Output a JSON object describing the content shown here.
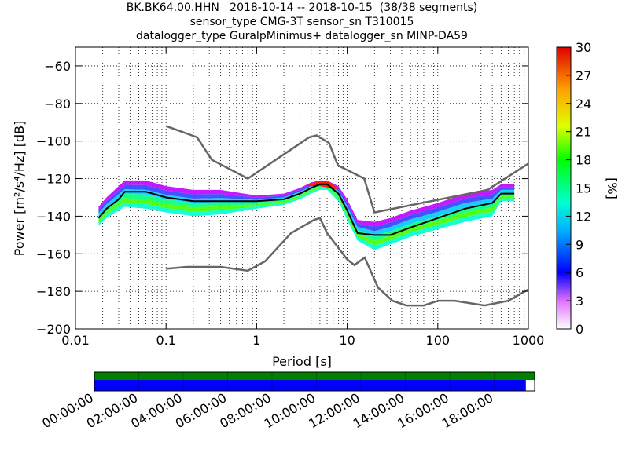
{
  "title_lines": [
    "BK.BK64.00.HHN   2018-10-14 -- 2018-10-15  (38/38 segments)",
    "sensor_type CMG-3T sensor_sn T310015",
    "datalogger_type GuralpMinimus+ datalogger_sn MINP-DA59"
  ],
  "chart_data": {
    "type": "heatmap",
    "xlabel": "Period [s]",
    "ylabel": "Power [m²/s⁴/Hz] [dB]",
    "xscale": "log",
    "xlim": [
      0.01,
      1000
    ],
    "ylim": [
      -200,
      -50
    ],
    "xticks": [
      {
        "value": 0.01,
        "label": "0.01"
      },
      {
        "value": 0.1,
        "label": "0.1"
      },
      {
        "value": 1,
        "label": "1"
      },
      {
        "value": 10,
        "label": "10"
      },
      {
        "value": 100,
        "label": "100"
      },
      {
        "value": 1000,
        "label": "1000"
      }
    ],
    "yticks": [
      {
        "value": -60,
        "label": "−60"
      },
      {
        "value": -80,
        "label": "−80"
      },
      {
        "value": -100,
        "label": "−100"
      },
      {
        "value": -120,
        "label": "−120"
      },
      {
        "value": -140,
        "label": "−140"
      },
      {
        "value": -160,
        "label": "−160"
      },
      {
        "value": -180,
        "label": "−180"
      },
      {
        "value": -200,
        "label": "−200"
      }
    ],
    "grid": true,
    "colorbar": {
      "label": "[%]",
      "range": [
        0,
        30
      ],
      "ticks": [
        "0",
        "3",
        "6",
        "9",
        "12",
        "15",
        "18",
        "21",
        "24",
        "27",
        "30"
      ]
    },
    "noise_models": {
      "high": [
        [
          0.1,
          -92
        ],
        [
          0.22,
          -98
        ],
        [
          0.32,
          -110
        ],
        [
          0.8,
          -120
        ],
        [
          3.8,
          -98
        ],
        [
          4.6,
          -97
        ],
        [
          6.3,
          -101
        ],
        [
          7.9,
          -113
        ],
        [
          15.4,
          -120
        ],
        [
          20,
          -138
        ],
        [
          354.8,
          -126
        ],
        [
          1000,
          -112
        ]
      ],
      "low": [
        [
          0.1,
          -168
        ],
        [
          0.17,
          -167
        ],
        [
          0.4,
          -167
        ],
        [
          0.8,
          -169
        ],
        [
          1.24,
          -164
        ],
        [
          2.4,
          -149
        ],
        [
          4.3,
          -142
        ],
        [
          5,
          -141
        ],
        [
          6,
          -149
        ],
        [
          10,
          -163
        ],
        [
          12,
          -166
        ],
        [
          15.6,
          -162
        ],
        [
          21.9,
          -178
        ],
        [
          31.6,
          -185
        ],
        [
          45,
          -187.5
        ],
        [
          70,
          -187.5
        ],
        [
          101,
          -185
        ],
        [
          154,
          -185
        ],
        [
          328,
          -187.5
        ],
        [
          600,
          -185
        ],
        [
          1000,
          -179
        ]
      ]
    },
    "median_psd": [
      [
        0.018,
        -141
      ],
      [
        0.022,
        -136
      ],
      [
        0.03,
        -131
      ],
      [
        0.035,
        -127
      ],
      [
        0.06,
        -127
      ],
      [
        0.1,
        -130
      ],
      [
        0.2,
        -132
      ],
      [
        0.4,
        -132
      ],
      [
        1,
        -132
      ],
      [
        2,
        -131
      ],
      [
        3,
        -128
      ],
      [
        4,
        -125
      ],
      [
        5,
        -123
      ],
      [
        6,
        -123
      ],
      [
        8,
        -128
      ],
      [
        10,
        -137
      ],
      [
        13,
        -149
      ],
      [
        20,
        -150
      ],
      [
        30,
        -150
      ],
      [
        50,
        -146
      ],
      [
        100,
        -141
      ],
      [
        200,
        -136
      ],
      [
        400,
        -133
      ],
      [
        500,
        -128
      ],
      [
        700,
        -128
      ]
    ],
    "pdf_bands": [
      {
        "x": [
          0.018,
          0.022,
          0.03,
          0.035,
          0.06,
          0.1,
          0.2,
          0.4,
          1,
          2,
          3,
          4,
          5,
          6,
          8,
          10,
          13,
          20,
          30,
          50,
          100,
          200,
          400,
          500,
          700
        ],
        "upper": [
          -135,
          -130,
          -124,
          -121,
          -121,
          -124,
          -126,
          -126,
          -129,
          -128,
          -125,
          -122,
          -121,
          -121,
          -124,
          -131,
          -142,
          -143,
          -141,
          -137,
          -133,
          -128,
          -126,
          -123,
          -123
        ],
        "lower": [
          -145,
          -141,
          -137,
          -135,
          -136,
          -138,
          -140,
          -139,
          -136,
          -134,
          -131,
          -128,
          -126,
          -126,
          -132,
          -142,
          -153,
          -158,
          -155,
          -151,
          -147,
          -143,
          -140,
          -132,
          -132
        ]
      }
    ],
    "timeline": {
      "tick_labels": [
        "00:00:00",
        "02:00:00",
        "04:00:00",
        "06:00:00",
        "08:00:00",
        "10:00:00",
        "12:00:00",
        "14:00:00",
        "16:00:00",
        "18:00:00"
      ],
      "data_coverage_fraction": 0.98,
      "bar_colors": {
        "availability": "#008000",
        "used": "#0000ff"
      }
    }
  }
}
